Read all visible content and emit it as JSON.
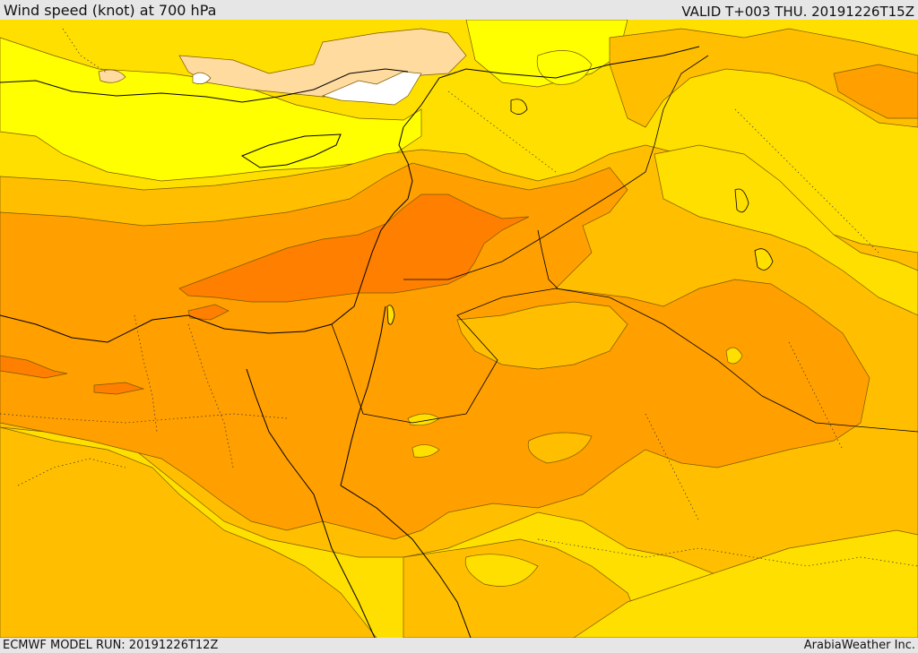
{
  "header": {
    "title": "Wind speed (knot) at 700 hPa",
    "valid": "VALID T+003 THU. 20191226T15Z"
  },
  "footer": {
    "model_run": "ECMWF MODEL RUN: 20191226T12Z",
    "credit": "ArabiaWeather Inc."
  },
  "map": {
    "color_bands": [
      {
        "name": "band-white",
        "color": "#ffffff"
      },
      {
        "name": "band-cream",
        "color": "#ffdba0"
      },
      {
        "name": "band-yellow",
        "color": "#ffff00"
      },
      {
        "name": "band-gold",
        "color": "#ffdf00"
      },
      {
        "name": "band-amber",
        "color": "#ffbf00"
      },
      {
        "name": "band-orange",
        "color": "#ff9f00"
      },
      {
        "name": "band-dark-orange",
        "color": "#ff7f00"
      }
    ]
  }
}
